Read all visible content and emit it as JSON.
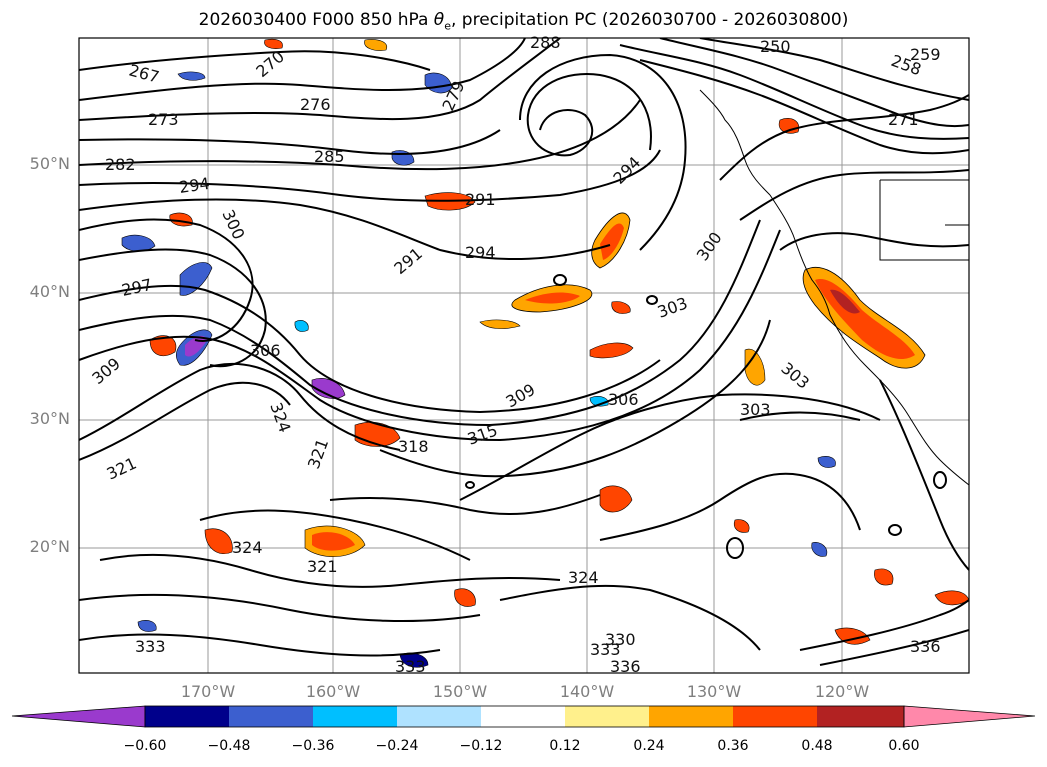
{
  "title_main": "2026030400 F000 850 hPa ",
  "title_symbol": "θ",
  "title_subscript": "e",
  "title_rest": ", precipitation PC (2026030700 - 2026030800)",
  "latitude_labels": [
    "50°N",
    "40°N",
    "30°N",
    "20°N"
  ],
  "longitude_labels": [
    "170°W",
    "160°W",
    "150°W",
    "140°W",
    "130°W",
    "120°W"
  ],
  "contour_labels": [
    "267",
    "270",
    "273",
    "276",
    "279",
    "282",
    "285",
    "288",
    "291",
    "291",
    "294",
    "294",
    "294",
    "297",
    "300",
    "300",
    "303",
    "303",
    "303",
    "306",
    "306",
    "309",
    "309",
    "315",
    "318",
    "321",
    "321",
    "321",
    "324",
    "324",
    "324",
    "330",
    "333",
    "333",
    "333",
    "336",
    "336",
    "250",
    "258",
    "271",
    "259"
  ],
  "colorbar": {
    "ticks": [
      "−0.60",
      "−0.48",
      "−0.36",
      "−0.24",
      "−0.12",
      "0.12",
      "0.24",
      "0.36",
      "0.48",
      "0.60"
    ],
    "bins": [
      {
        "value": -0.66,
        "color": "#9a3acd"
      },
      {
        "value": -0.54,
        "color": "#00008b"
      },
      {
        "value": -0.42,
        "color": "#3c5fcf"
      },
      {
        "value": -0.3,
        "color": "#00bfff"
      },
      {
        "value": -0.18,
        "color": "#afe2ff"
      },
      {
        "value": 0.0,
        "color": "#ffffff"
      },
      {
        "value": 0.18,
        "color": "#fff08c"
      },
      {
        "value": 0.3,
        "color": "#ffa500"
      },
      {
        "value": 0.42,
        "color": "#ff4500"
      },
      {
        "value": 0.54,
        "color": "#b22222"
      },
      {
        "value": 0.66,
        "color": "#ff88aa"
      }
    ]
  },
  "chart_data": {
    "type": "map",
    "title": "2026030400 F000 850 hPa θe, precipitation PC (2026030700 - 2026030800)",
    "lat_ticks": [
      50,
      40,
      30,
      20
    ],
    "lon_ticks": [
      -170,
      -160,
      -150,
      -140,
      -130,
      -120
    ],
    "colorbar_levels": [
      -0.6,
      -0.48,
      -0.36,
      -0.24,
      -0.12,
      0.12,
      0.24,
      0.36,
      0.48,
      0.6
    ],
    "contour_field": "850 hPa theta-e (K)"
  }
}
